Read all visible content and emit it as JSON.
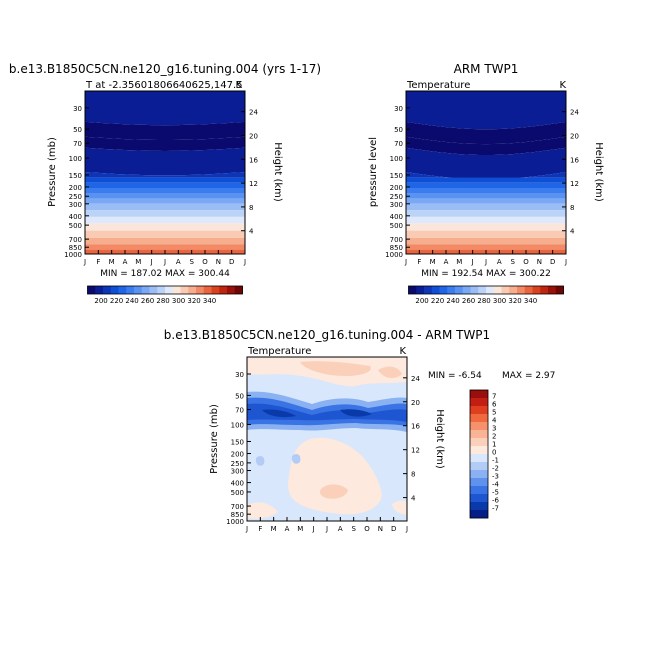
{
  "chart_data": [
    {
      "type": "heatmap",
      "title": "b.e13.B1850C5CN.ne120_g16.tuning.004 (yrs 1-17)",
      "subtitle_left": "T at -2.35601806640625,147.5",
      "subtitle_right": "K",
      "ylabel": "Pressure (mb)",
      "ylabel_right": "Height (km)",
      "x_ticks": [
        "J",
        "F",
        "M",
        "A",
        "M",
        "J",
        "J",
        "A",
        "S",
        "O",
        "N",
        "D",
        "J"
      ],
      "y_ticks": [
        "30",
        "50",
        "70",
        "100",
        "150",
        "200",
        "250",
        "300",
        "400",
        "500",
        "700",
        "850",
        "1000"
      ],
      "y_ticks_right": [
        "24",
        "20",
        "16",
        "12",
        "8",
        "4"
      ],
      "y_tick_values": [
        30,
        50,
        70,
        100,
        150,
        200,
        250,
        300,
        400,
        500,
        700,
        850,
        1000
      ],
      "ylim": [
        1000,
        20
      ],
      "stats": "MIN = 187.02  MAX = 300.44",
      "colorscale": "temperature",
      "tropopause_dip": 0.08,
      "months": [
        1,
        2,
        3,
        4,
        5,
        6,
        7,
        8,
        9,
        10,
        11,
        12,
        13
      ]
    },
    {
      "type": "heatmap",
      "title": "ARM TWP1",
      "subtitle_left": "Temperature",
      "subtitle_right": "K",
      "ylabel": "pressure level",
      "ylabel_right": "Height (km)",
      "x_ticks": [
        "J",
        "F",
        "M",
        "A",
        "M",
        "J",
        "J",
        "A",
        "S",
        "O",
        "N",
        "D",
        "J"
      ],
      "y_ticks": [
        "30",
        "50",
        "70",
        "100",
        "150",
        "200",
        "250",
        "300",
        "400",
        "500",
        "700",
        "850",
        "1000"
      ],
      "y_ticks_right": [
        "24",
        "20",
        "16",
        "12",
        "8",
        "4"
      ],
      "y_tick_values": [
        30,
        50,
        70,
        100,
        150,
        200,
        250,
        300,
        400,
        500,
        700,
        850,
        1000
      ],
      "ylim": [
        1000,
        20
      ],
      "stats": "MIN = 192.54  MAX = 300.22",
      "colorscale": "temperature",
      "tropopause_dip": 0.18,
      "months": [
        1,
        2,
        3,
        4,
        5,
        6,
        7,
        8,
        9,
        10,
        11,
        12,
        13
      ]
    },
    {
      "type": "heatmap",
      "title": "b.e13.B1850C5CN.ne120_g16.tuning.004 - ARM TWP1",
      "subtitle_left": "Temperature",
      "subtitle_right": "K",
      "ylabel": "Pressure (mb)",
      "ylabel_right": "Height (km)",
      "x_ticks": [
        "J",
        "F",
        "M",
        "A",
        "M",
        "J",
        "J",
        "A",
        "S",
        "O",
        "N",
        "D",
        "J"
      ],
      "y_ticks": [
        "30",
        "50",
        "70",
        "100",
        "150",
        "200",
        "250",
        "300",
        "400",
        "500",
        "700",
        "850",
        "1000"
      ],
      "y_ticks_right": [
        "24",
        "20",
        "16",
        "12",
        "8",
        "4"
      ],
      "y_tick_values": [
        30,
        50,
        70,
        100,
        150,
        200,
        250,
        300,
        400,
        500,
        700,
        850,
        1000
      ],
      "ylim": [
        1000,
        20
      ],
      "stats_min": "MIN = -6.54",
      "stats_max": "MAX =  2.97",
      "colorscale": "difference"
    }
  ],
  "colorbars": {
    "temperature": {
      "labels": [
        "200",
        "220",
        "240",
        "260",
        "280",
        "300",
        "320",
        "340"
      ],
      "colors": [
        "#0a0a6e",
        "#0b1d94",
        "#0c35b8",
        "#0f4fd6",
        "#1f66e6",
        "#3b7cee",
        "#5a92f1",
        "#7aa8f4",
        "#9bbdf6",
        "#bcd3f8",
        "#dfe9fb",
        "#fbe6dc",
        "#f9cbb5",
        "#f6ae8e",
        "#f28a66",
        "#e9653f",
        "#d8421f",
        "#bf260f",
        "#99110a",
        "#6e0606"
      ]
    },
    "difference": {
      "labels": [
        "7",
        "6",
        "5",
        "4",
        "3",
        "2",
        "1",
        "0",
        "-1",
        "-2",
        "-3",
        "-4",
        "-5",
        "-6",
        "-7"
      ],
      "colors": [
        "#9b0e0e",
        "#c31e13",
        "#e03f1f",
        "#ef6a3f",
        "#f6916c",
        "#f9b497",
        "#fbd0bb",
        "#fde9de",
        "#d8e7fb",
        "#b3ccf6",
        "#8ab1f2",
        "#5f92ec",
        "#3a73e3",
        "#1e55d1",
        "#0a3aaa",
        "#061f86"
      ]
    }
  }
}
